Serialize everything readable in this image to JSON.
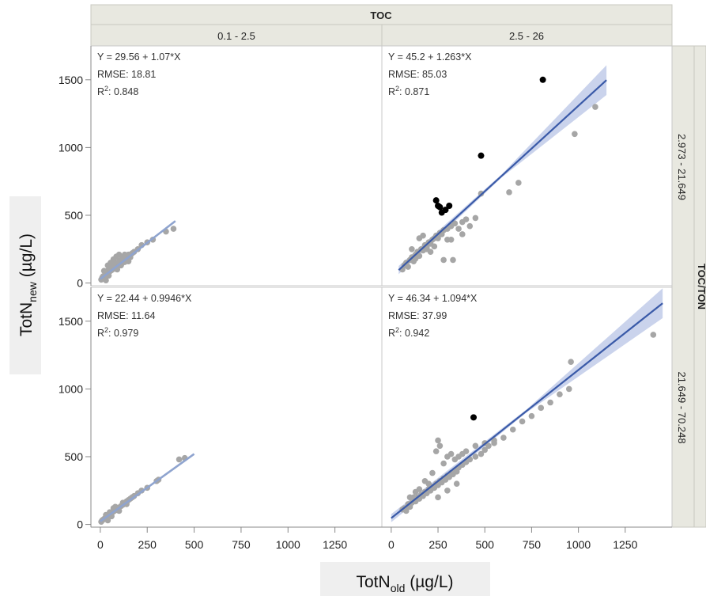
{
  "chart_data": {
    "type": "scatter",
    "col_group": {
      "title": "TOC",
      "levels": [
        "0.1 - 2.5",
        "2.5 - 26"
      ]
    },
    "row_group": {
      "title": "TOC/TON",
      "levels": [
        "2.973 - 21.649",
        "21.649 - 70.248"
      ]
    },
    "xlabel_main": "TotN",
    "xlabel_sub": "old",
    "xlabel_unit": " (µg/L)",
    "ylabel_main": "TotN",
    "ylabel_sub": "new",
    "ylabel_unit": " (µg/L)",
    "x_ticks": [
      0,
      250,
      500,
      750,
      1000,
      1250
    ],
    "y_ticks": [
      0,
      500,
      1000,
      1500
    ],
    "colors": {
      "point_gray": "#a6a6a6",
      "point_black": "#000000",
      "line_dark": "#3a5aa8",
      "line_light": "#8fa4cf",
      "band": "#b8c4e6",
      "header_bg": "#e8e8e0"
    },
    "panels": [
      {
        "row": 0,
        "col": 0,
        "equation": "Y = 29.56 + 1.07*X",
        "rmse": "RMSE: 18.81",
        "r2_prefix": "R",
        "r2_value": ": 0.848",
        "intercept": 29.56,
        "slope": 1.07,
        "fit_x_range": [
          0,
          400
        ],
        "fit_style": "light",
        "points_gray": [
          [
            5,
            25
          ],
          [
            10,
            40
          ],
          [
            15,
            50
          ],
          [
            20,
            45
          ],
          [
            25,
            60
          ],
          [
            30,
            80
          ],
          [
            35,
            70
          ],
          [
            40,
            90
          ],
          [
            45,
            100
          ],
          [
            50,
            85
          ],
          [
            55,
            110
          ],
          [
            60,
            95
          ],
          [
            65,
            120
          ],
          [
            70,
            130
          ],
          [
            75,
            105
          ],
          [
            80,
            140
          ],
          [
            85,
            115
          ],
          [
            90,
            150
          ],
          [
            95,
            125
          ],
          [
            100,
            160
          ],
          [
            105,
            135
          ],
          [
            110,
            170
          ],
          [
            115,
            145
          ],
          [
            120,
            180
          ],
          [
            125,
            190
          ],
          [
            130,
            155
          ],
          [
            135,
            200
          ],
          [
            140,
            175
          ],
          [
            150,
            210
          ],
          [
            160,
            190
          ],
          [
            170,
            220
          ],
          [
            180,
            230
          ],
          [
            200,
            250
          ],
          [
            220,
            280
          ],
          [
            250,
            300
          ],
          [
            280,
            320
          ],
          [
            350,
            380
          ],
          [
            390,
            400
          ],
          [
            30,
            20
          ],
          [
            45,
            55
          ],
          [
            60,
            120
          ],
          [
            75,
            150
          ],
          [
            90,
            100
          ],
          [
            110,
            130
          ],
          [
            130,
            210
          ],
          [
            150,
            160
          ],
          [
            20,
            90
          ],
          [
            40,
            130
          ],
          [
            55,
            150
          ],
          [
            70,
            175
          ],
          [
            85,
            195
          ],
          [
            100,
            210
          ]
        ],
        "points_black": []
      },
      {
        "row": 0,
        "col": 1,
        "equation": "Y = 45.2 + 1.263*X",
        "rmse": "RMSE: 85.03",
        "r2_prefix": "R",
        "r2_value": ": 0.871",
        "intercept": 45.2,
        "slope": 1.263,
        "fit_x_range": [
          40,
          1150
        ],
        "fit_style": "dark",
        "points_gray": [
          [
            60,
            100
          ],
          [
            70,
            130
          ],
          [
            80,
            150
          ],
          [
            90,
            120
          ],
          [
            100,
            170
          ],
          [
            110,
            190
          ],
          [
            120,
            160
          ],
          [
            130,
            210
          ],
          [
            140,
            230
          ],
          [
            150,
            200
          ],
          [
            160,
            250
          ],
          [
            170,
            240
          ],
          [
            180,
            280
          ],
          [
            190,
            260
          ],
          [
            200,
            300
          ],
          [
            210,
            290
          ],
          [
            220,
            320
          ],
          [
            230,
            330
          ],
          [
            240,
            350
          ],
          [
            250,
            330
          ],
          [
            260,
            370
          ],
          [
            270,
            360
          ],
          [
            280,
            390
          ],
          [
            300,
            400
          ],
          [
            320,
            420
          ],
          [
            340,
            440
          ],
          [
            360,
            400
          ],
          [
            380,
            450
          ],
          [
            400,
            470
          ],
          [
            420,
            420
          ],
          [
            450,
            480
          ],
          [
            480,
            660
          ],
          [
            630,
            670
          ],
          [
            680,
            740
          ],
          [
            980,
            1100
          ],
          [
            1090,
            1300
          ],
          [
            150,
            330
          ],
          [
            170,
            350
          ],
          [
            190,
            250
          ],
          [
            210,
            230
          ],
          [
            230,
            270
          ],
          [
            320,
            320
          ],
          [
            330,
            170
          ],
          [
            110,
            250
          ],
          [
            130,
            180
          ],
          [
            280,
            170
          ],
          [
            300,
            320
          ],
          [
            380,
            360
          ]
        ],
        "points_black": [
          [
            240,
            610
          ],
          [
            260,
            560
          ],
          [
            270,
            520
          ],
          [
            290,
            540
          ],
          [
            310,
            570
          ],
          [
            480,
            940
          ],
          [
            810,
            1500
          ],
          [
            250,
            570
          ]
        ]
      },
      {
        "row": 1,
        "col": 0,
        "equation": "Y = 22.44 + 0.9946*X",
        "rmse": "RMSE: 11.64",
        "r2_prefix": "R",
        "r2_value": ": 0.979",
        "intercept": 22.44,
        "slope": 0.9946,
        "fit_x_range": [
          0,
          500
        ],
        "fit_style": "light",
        "points_gray": [
          [
            5,
            20
          ],
          [
            10,
            30
          ],
          [
            15,
            35
          ],
          [
            20,
            40
          ],
          [
            25,
            45
          ],
          [
            30,
            50
          ],
          [
            35,
            55
          ],
          [
            40,
            60
          ],
          [
            45,
            65
          ],
          [
            50,
            70
          ],
          [
            55,
            80
          ],
          [
            60,
            85
          ],
          [
            65,
            90
          ],
          [
            70,
            95
          ],
          [
            75,
            100
          ],
          [
            80,
            105
          ],
          [
            85,
            110
          ],
          [
            90,
            115
          ],
          [
            95,
            120
          ],
          [
            100,
            125
          ],
          [
            110,
            135
          ],
          [
            120,
            145
          ],
          [
            130,
            160
          ],
          [
            140,
            170
          ],
          [
            150,
            180
          ],
          [
            160,
            190
          ],
          [
            170,
            200
          ],
          [
            180,
            210
          ],
          [
            200,
            230
          ],
          [
            220,
            250
          ],
          [
            250,
            270
          ],
          [
            300,
            320
          ],
          [
            310,
            330
          ],
          [
            420,
            480
          ],
          [
            450,
            490
          ],
          [
            30,
            70
          ],
          [
            50,
            90
          ],
          [
            60,
            60
          ],
          [
            80,
            130
          ],
          [
            100,
            100
          ],
          [
            120,
            160
          ],
          [
            140,
            150
          ],
          [
            40,
            30
          ],
          [
            70,
            120
          ]
        ],
        "points_black": []
      },
      {
        "row": 1,
        "col": 1,
        "equation": "Y = 46.34 + 1.094*X",
        "rmse": "RMSE: 37.99",
        "r2_prefix": "R",
        "r2_value": ": 0.942",
        "intercept": 46.34,
        "slope": 1.094,
        "fit_x_range": [
          0,
          1450
        ],
        "fit_style": "dark",
        "points_gray": [
          [
            60,
            110
          ],
          [
            70,
            120
          ],
          [
            80,
            100
          ],
          [
            90,
            150
          ],
          [
            100,
            130
          ],
          [
            110,
            160
          ],
          [
            120,
            180
          ],
          [
            130,
            170
          ],
          [
            140,
            200
          ],
          [
            150,
            190
          ],
          [
            160,
            220
          ],
          [
            170,
            210
          ],
          [
            180,
            240
          ],
          [
            190,
            230
          ],
          [
            200,
            260
          ],
          [
            210,
            250
          ],
          [
            220,
            280
          ],
          [
            230,
            270
          ],
          [
            240,
            300
          ],
          [
            250,
            290
          ],
          [
            260,
            320
          ],
          [
            270,
            310
          ],
          [
            280,
            340
          ],
          [
            290,
            330
          ],
          [
            300,
            360
          ],
          [
            310,
            350
          ],
          [
            320,
            380
          ],
          [
            330,
            370
          ],
          [
            340,
            400
          ],
          [
            350,
            390
          ],
          [
            360,
            420
          ],
          [
            380,
            440
          ],
          [
            400,
            460
          ],
          [
            420,
            480
          ],
          [
            450,
            500
          ],
          [
            480,
            520
          ],
          [
            500,
            550
          ],
          [
            520,
            580
          ],
          [
            550,
            600
          ],
          [
            600,
            640
          ],
          [
            650,
            700
          ],
          [
            700,
            760
          ],
          [
            750,
            800
          ],
          [
            800,
            860
          ],
          [
            850,
            900
          ],
          [
            900,
            960
          ],
          [
            950,
            1000
          ],
          [
            960,
            1200
          ],
          [
            1400,
            1400
          ],
          [
            250,
            620
          ],
          [
            260,
            580
          ],
          [
            240,
            540
          ],
          [
            200,
            300
          ],
          [
            150,
            260
          ],
          [
            120,
            200
          ],
          [
            180,
            320
          ],
          [
            220,
            380
          ],
          [
            280,
            450
          ],
          [
            300,
            500
          ],
          [
            320,
            520
          ],
          [
            340,
            480
          ],
          [
            360,
            500
          ],
          [
            380,
            520
          ],
          [
            400,
            540
          ],
          [
            450,
            580
          ],
          [
            500,
            600
          ],
          [
            550,
            620
          ],
          [
            250,
            200
          ],
          [
            300,
            250
          ],
          [
            350,
            300
          ],
          [
            100,
            200
          ],
          [
            130,
            240
          ]
        ],
        "points_black": [
          [
            440,
            790
          ]
        ]
      }
    ]
  }
}
